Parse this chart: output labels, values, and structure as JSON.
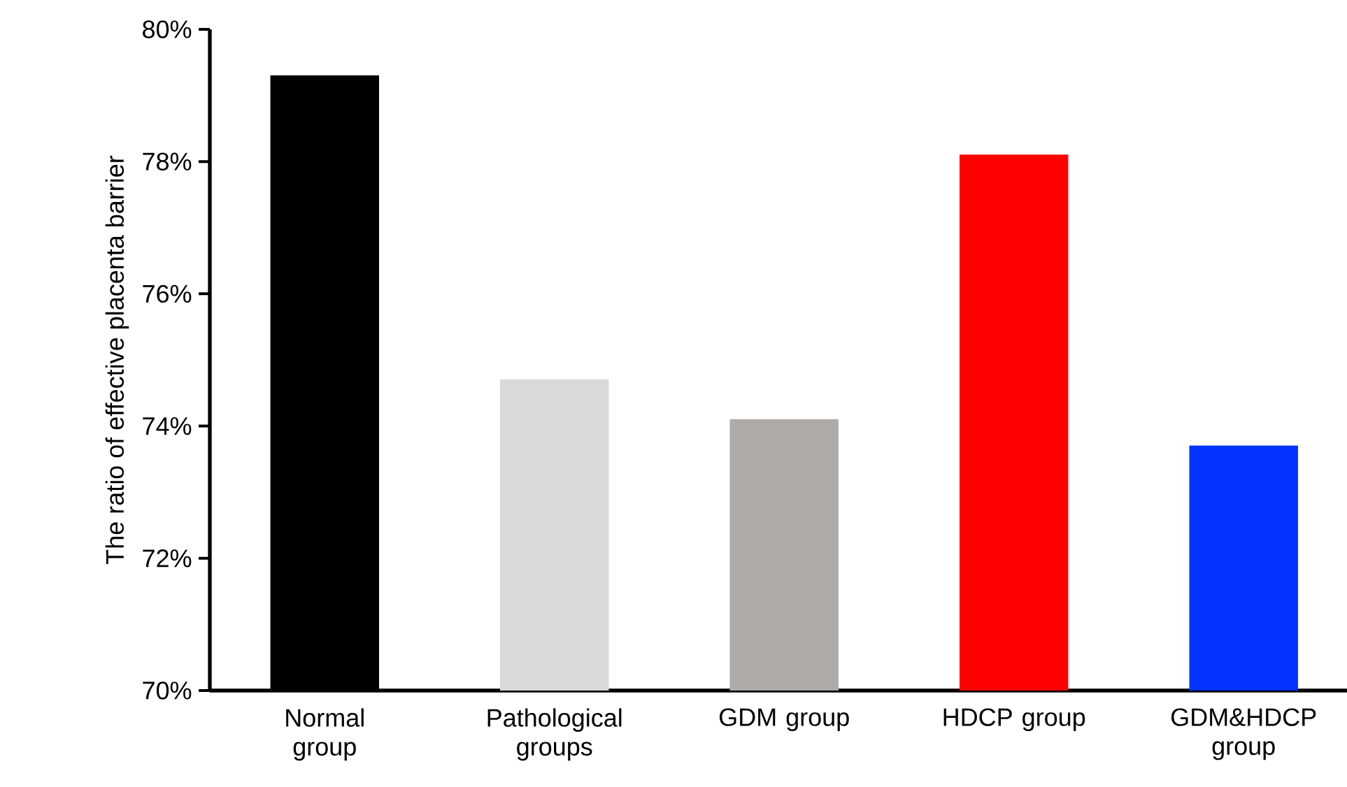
{
  "chart_data": {
    "type": "bar",
    "ylabel": "The ratio of effective placenta barrier",
    "categories": [
      "Normal group",
      "Pathological groups",
      "GDM group",
      "HDCP group",
      "GDM&HDCP group"
    ],
    "values": [
      79.3,
      74.7,
      74.1,
      78.1,
      73.7
    ],
    "colors": [
      "#000000",
      "#d9d9d9",
      "#aeaaa7",
      "#ff0000",
      "#0433ff"
    ],
    "ylim": [
      70,
      80
    ],
    "yticks": [
      {
        "value": 70,
        "label": "70%"
      },
      {
        "value": 72,
        "label": "72%"
      },
      {
        "value": 74,
        "label": "74%"
      },
      {
        "value": 76,
        "label": "76%"
      },
      {
        "value": 78,
        "label": "78%"
      },
      {
        "value": 80,
        "label": "80%"
      }
    ],
    "grid": false
  }
}
